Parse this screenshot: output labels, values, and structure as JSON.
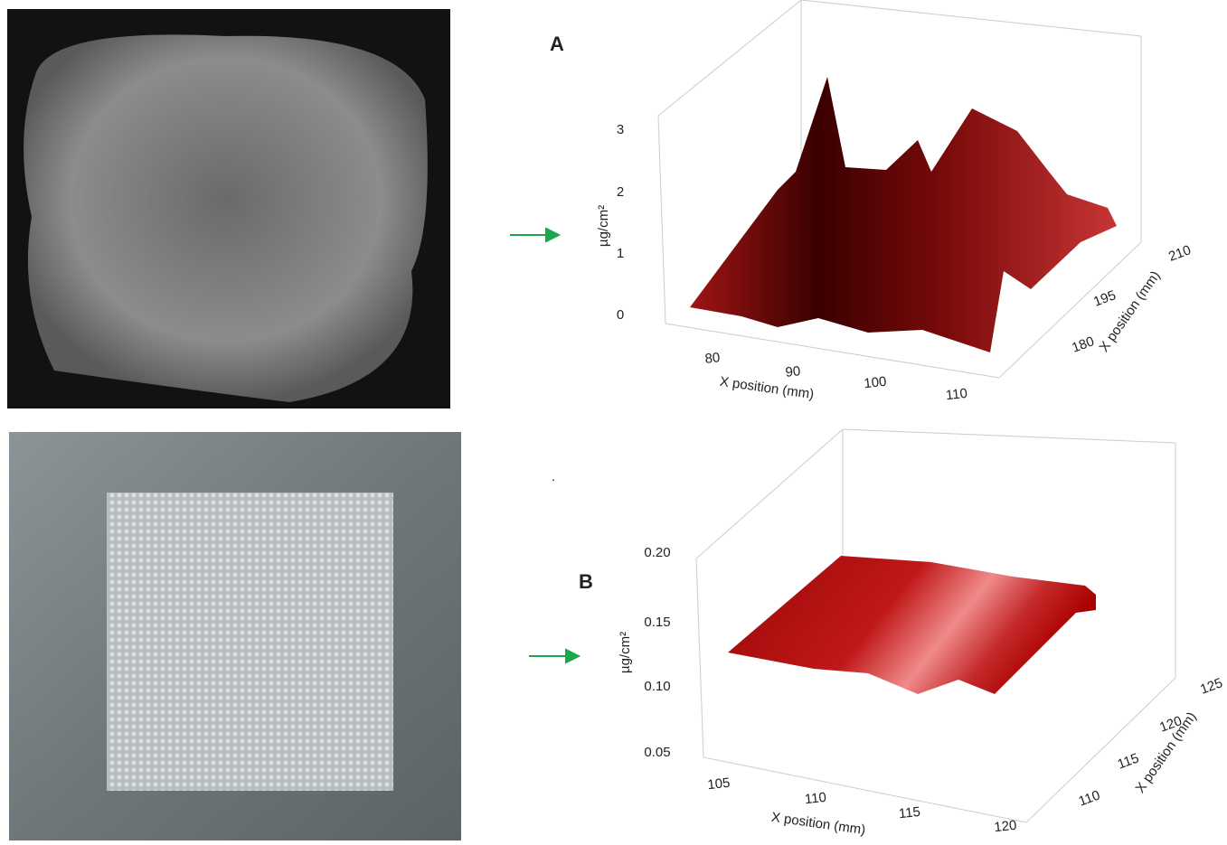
{
  "panels": [
    {
      "label": "A",
      "z_label": "µg/cm²",
      "z_ticks": [
        "3",
        "2",
        "1",
        "0"
      ],
      "x_label": "X position (mm)",
      "x_ticks": [
        "80",
        "90",
        "100",
        "110"
      ],
      "y_label": "X position (mm)",
      "y_ticks": [
        "180",
        "195",
        "210"
      ]
    },
    {
      "label": "B",
      "z_label": "µg/cm²",
      "z_ticks": [
        "0.20",
        "0.15",
        "0.10",
        "0.05"
      ],
      "x_label": "X position (mm)",
      "x_ticks": [
        "105",
        "110",
        "115",
        "120"
      ],
      "y_label": "X position (mm)",
      "y_ticks": [
        "110",
        "115",
        "120",
        "125"
      ]
    }
  ]
}
